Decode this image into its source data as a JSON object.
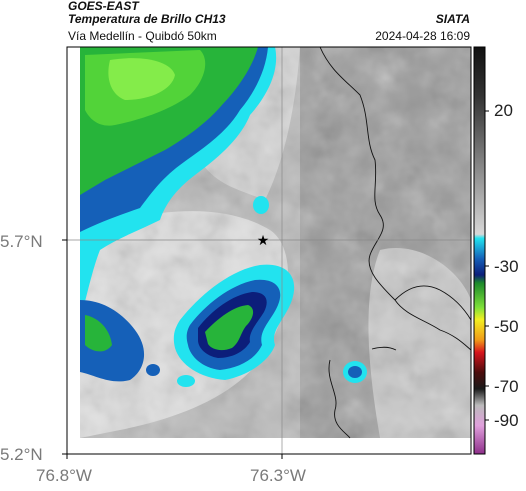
{
  "header": {
    "satellite": "GOES-EAST",
    "product": "Temperatura de Brillo CH13",
    "route": "Vía Medellín - Quibdó 50km",
    "organization": "SIATA",
    "timestamp": "2024-04-28 16:09"
  },
  "axes": {
    "lat_ticks": [
      "5.7°N",
      "5.2°N"
    ],
    "lon_ticks": [
      "76.8°W",
      "76.3°W"
    ]
  },
  "colorbar": {
    "tick_labels": [
      "20",
      "-30",
      "-50",
      "-70",
      "-90"
    ],
    "colors": {
      "black": "#111111",
      "gray": "#9a9a9a",
      "white": "#f4f4f4",
      "cyan": "#22e3ef",
      "blue": "#1560b8",
      "darkblue": "#0c1e7a",
      "green": "#27b43a",
      "lime": "#7ee03a",
      "yellow": "#f3ef22",
      "orange": "#f09a18",
      "red": "#d8141d",
      "darkred": "#4a0c0c",
      "magenta": "#c14bb7"
    }
  },
  "map": {
    "marker_icon": "star-icon",
    "features": [
      "cloud-top-temperature-field",
      "department-boundaries",
      "gridlines"
    ]
  }
}
